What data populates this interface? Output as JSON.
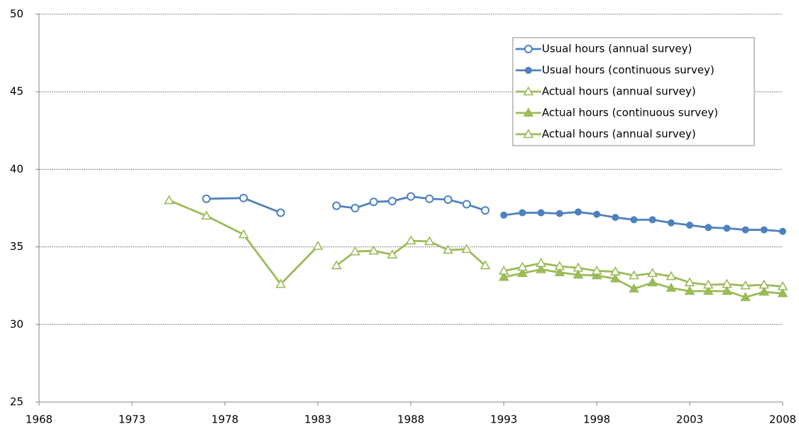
{
  "chart_data": {
    "type": "line",
    "xlim": [
      1968,
      2008
    ],
    "xticks": [
      1968,
      1973,
      1978,
      1983,
      1988,
      1993,
      1998,
      2003,
      2008
    ],
    "ylim": [
      25,
      50
    ],
    "yticks": [
      25,
      30,
      35,
      40,
      45,
      50
    ],
    "grid": true,
    "legend": "upper right",
    "series": [
      {
        "name": "Usual hours (annual survey)",
        "color": "#4f81bd",
        "marker": "circle",
        "filled": false,
        "pieces": [
          {
            "x": [
              1977,
              1979,
              1981
            ],
            "values": [
              38.1,
              38.15,
              37.2
            ]
          },
          {
            "x": [
              1984,
              1985,
              1986,
              1987,
              1988,
              1989,
              1990,
              1991,
              1992
            ],
            "values": [
              37.65,
              37.5,
              37.9,
              37.95,
              38.25,
              38.1,
              38.05,
              37.75,
              37.35
            ]
          }
        ]
      },
      {
        "name": "Usual hours (continuous survey)",
        "color": "#4f81bd",
        "marker": "circle",
        "filled": true,
        "pieces": [
          {
            "x": [
              1993,
              1994,
              1995,
              1996,
              1997,
              1998,
              1999,
              2000,
              2001,
              2002,
              2003,
              2004,
              2005,
              2006,
              2007,
              2008
            ],
            "values": [
              37.05,
              37.2,
              37.2,
              37.15,
              37.25,
              37.1,
              36.9,
              36.75,
              36.75,
              36.55,
              36.4,
              36.25,
              36.2,
              36.1,
              36.1,
              36.0
            ]
          }
        ]
      },
      {
        "name": "Actual hours (annual survey)",
        "color": "#9bbb59",
        "marker": "triangle",
        "filled": false,
        "pieces": [
          {
            "x": [
              1975,
              1977,
              1979,
              1981,
              1983
            ],
            "values": [
              38.0,
              37.0,
              35.8,
              32.6,
              35.05
            ]
          },
          {
            "x": [
              1984,
              1985,
              1986,
              1987,
              1988,
              1989,
              1990,
              1991,
              1992
            ],
            "values": [
              33.8,
              34.7,
              34.75,
              34.5,
              35.4,
              35.35,
              34.8,
              34.85,
              33.8
            ]
          }
        ]
      },
      {
        "name": "Actual hours (continuous survey)",
        "color": "#9bbb59",
        "marker": "triangle",
        "filled": true,
        "pieces": [
          {
            "x": [
              1993,
              1994,
              1995,
              1996,
              1997,
              1998,
              1999,
              2000,
              2001,
              2002,
              2003,
              2004,
              2005,
              2006,
              2007,
              2008
            ],
            "values": [
              33.05,
              33.3,
              33.55,
              33.35,
              33.2,
              33.15,
              32.95,
              32.3,
              32.7,
              32.35,
              32.15,
              32.15,
              32.15,
              31.75,
              32.1,
              32.0
            ]
          }
        ]
      },
      {
        "name": "Actual hours (annual survey)",
        "color": "#9bbb59",
        "marker": "triangle",
        "filled": false,
        "pieces": [
          {
            "x": [
              1993,
              1994,
              1995,
              1996,
              1997,
              1998,
              1999,
              2000,
              2001,
              2002,
              2003,
              2004,
              2005,
              2006,
              2007,
              2008
            ],
            "values": [
              33.45,
              33.7,
              33.95,
              33.75,
              33.65,
              33.45,
              33.4,
              33.15,
              33.3,
              33.1,
              32.7,
              32.55,
              32.6,
              32.5,
              32.55,
              32.45
            ]
          }
        ]
      }
    ]
  }
}
